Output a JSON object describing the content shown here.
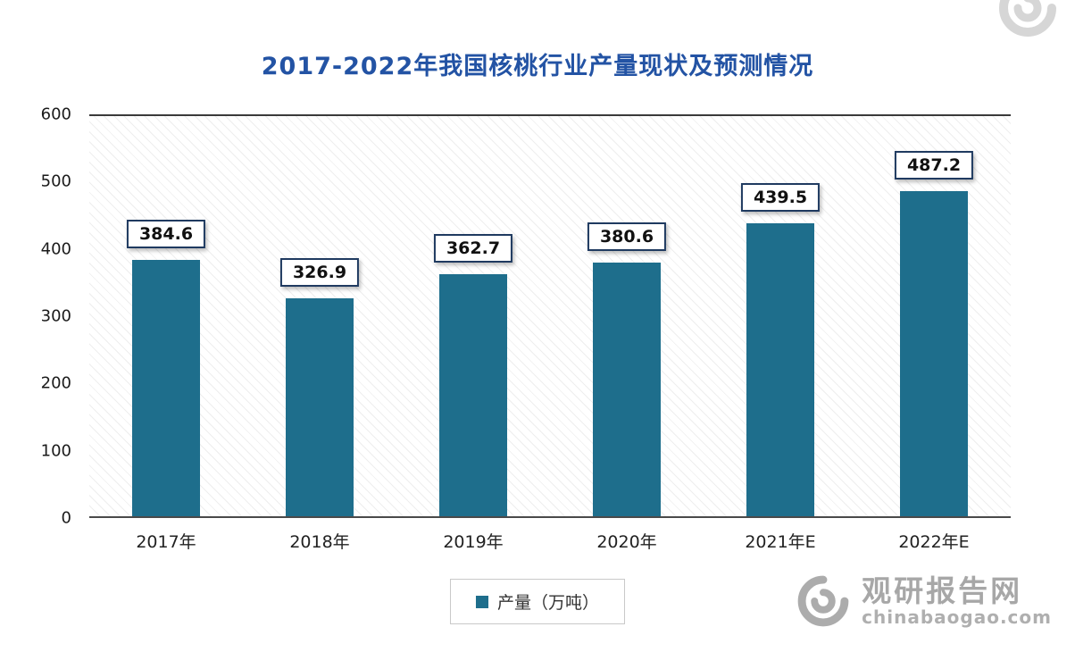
{
  "chart_data": {
    "type": "bar",
    "title": "2017-2022年我国核桃行业产量现状及预测情况",
    "categories": [
      "2017年",
      "2018年",
      "2019年",
      "2020年",
      "2021年E",
      "2022年E"
    ],
    "series": [
      {
        "name": "产量（万吨）",
        "values": [
          384.6,
          326.9,
          362.7,
          380.6,
          439.5,
          487.2
        ]
      }
    ],
    "xlabel": "",
    "ylabel": "",
    "ylim": [
      0,
      600
    ],
    "y_ticks": [
      0,
      100,
      200,
      300,
      400,
      500,
      600
    ],
    "grid": false,
    "legend_position": "bottom",
    "colors": {
      "bar": "#1E6E8C",
      "title": "#2353A4",
      "label_box_border": "#1F3A60",
      "axis_line": "#3a3a3a",
      "watermark": "#a6a6a6"
    }
  },
  "legend": {
    "label": "产量（万吨）"
  },
  "watermark": {
    "name": "观研报告网",
    "domain": "chinabaogao.com"
  }
}
